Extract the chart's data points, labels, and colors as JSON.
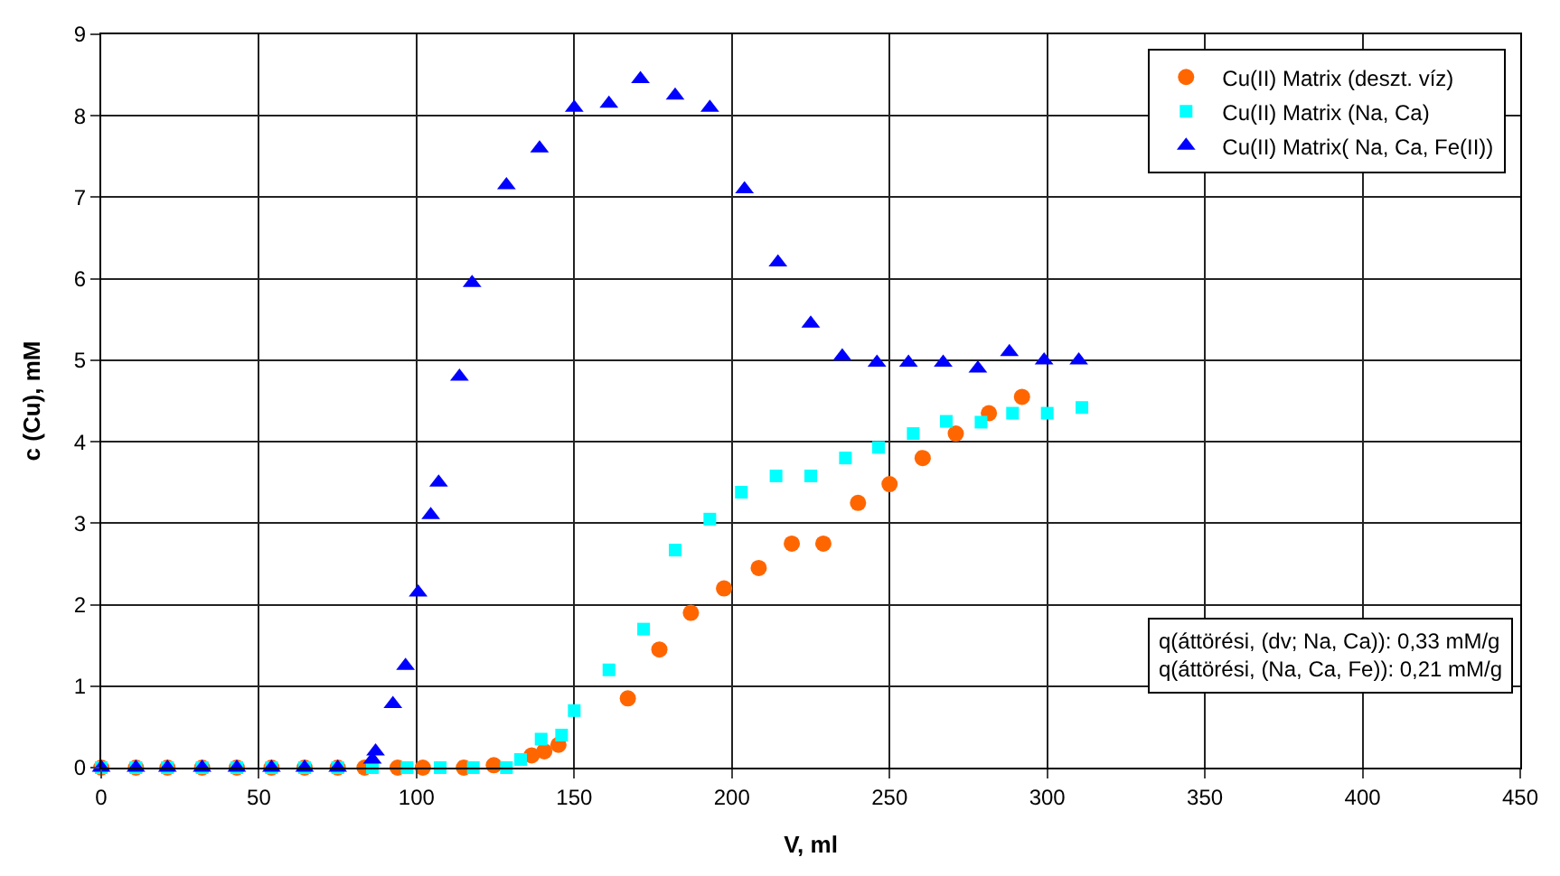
{
  "chart_data": {
    "type": "scatter",
    "xlabel": "V, ml",
    "ylabel": "c (Cu), mM",
    "xlim": [
      0,
      450
    ],
    "xticks": [
      0,
      50,
      100,
      150,
      200,
      250,
      300,
      350,
      400,
      450
    ],
    "ylim": [
      0,
      9
    ],
    "yticks": [
      0,
      1,
      2,
      3,
      4,
      5,
      6,
      7,
      8,
      9
    ],
    "grid": true,
    "legend": "top right",
    "series": [
      {
        "name": "Cu(II) Matrix (deszt. víz)",
        "color": "#ff6600",
        "marker": "circle",
        "x": [
          0,
          11,
          21,
          32,
          43,
          54,
          64.5,
          75,
          83.5,
          94,
          102,
          115,
          124.5,
          131,
          136.5,
          140.5,
          145,
          167,
          177,
          187,
          197.5,
          208.5,
          219,
          229,
          240,
          250,
          260.5,
          271,
          281.5,
          292
        ],
        "values": [
          0,
          0,
          0,
          0,
          0,
          0,
          0,
          0,
          0,
          0,
          0,
          0,
          0.03,
          null,
          0.15,
          0.2,
          0.28,
          0.85,
          1.45,
          1.9,
          2.2,
          2.45,
          2.75,
          2.75,
          3.25,
          3.48,
          3.8,
          4.1,
          4.35,
          4.55
        ]
      },
      {
        "name": "Cu(II) Matrix (Na, Ca)",
        "color": "#00ffff",
        "marker": "square",
        "x": [
          0,
          11,
          21,
          32,
          43,
          54,
          64.5,
          75,
          86,
          97,
          107.5,
          118,
          128.5,
          133,
          139.5,
          146,
          150,
          161,
          172,
          182,
          193,
          203,
          214,
          225,
          236,
          246.5,
          257.5,
          268,
          279,
          289,
          300,
          311
        ],
        "values": [
          0,
          0,
          0,
          0,
          0,
          0,
          0,
          0,
          0,
          0,
          0,
          0,
          0,
          0.1,
          0.35,
          0.4,
          0.7,
          1.2,
          1.7,
          2.67,
          3.05,
          3.38,
          3.58,
          3.58,
          3.8,
          3.93,
          4.1,
          4.25,
          4.24,
          4.35,
          4.35,
          4.42
        ]
      },
      {
        "name": "Cu(II) Matrix( Na, Ca, Fe(II))",
        "color": "#0000ff",
        "marker": "triangle",
        "x": [
          0,
          11,
          21,
          32,
          43,
          54,
          64.5,
          75,
          86,
          87,
          92.5,
          96.5,
          100.5,
          104.5,
          107,
          113.6,
          117.6,
          128.5,
          139,
          150,
          161,
          171,
          182,
          193,
          204,
          214.6,
          225,
          235,
          246,
          256,
          267,
          278,
          288,
          299,
          310
        ],
        "values": [
          0,
          0,
          0,
          0,
          0,
          0,
          0,
          0,
          0.1,
          0.2,
          0.78,
          1.25,
          2.15,
          3.1,
          3.5,
          4.8,
          5.95,
          7.15,
          7.6,
          8.1,
          8.15,
          8.45,
          8.25,
          8.1,
          7.1,
          6.2,
          5.45,
          5.05,
          4.97,
          4.97,
          4.97,
          4.9,
          5.1,
          5.0,
          5.0
        ]
      }
    ],
    "annotations": [
      "q(áttörési, (dv; Na, Ca)): 0,33 mM/g\nq(áttörési, (Na, Ca, Fe)): 0,21 mM/g"
    ]
  }
}
